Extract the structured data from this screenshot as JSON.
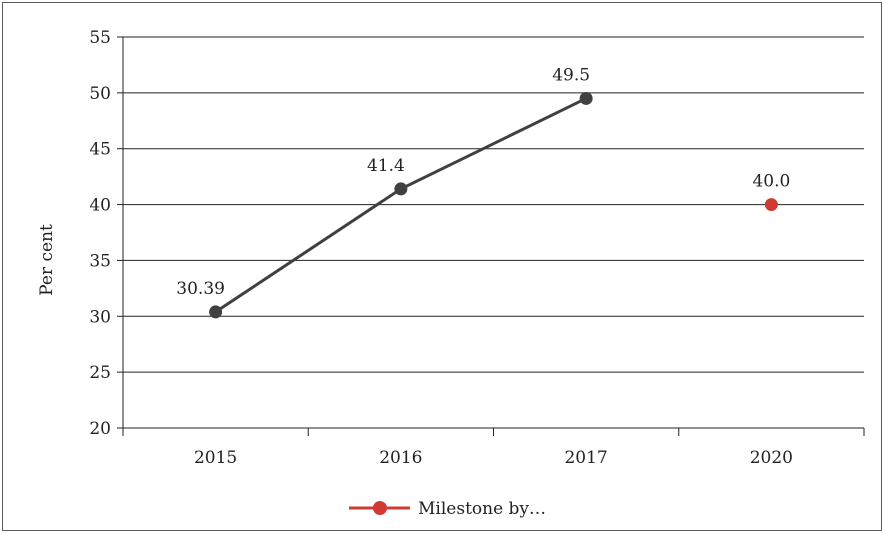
{
  "chart_data": {
    "type": "line",
    "title": "",
    "xlabel": "",
    "ylabel": "Per cent",
    "categories": [
      "2015",
      "2016",
      "2017",
      "2020"
    ],
    "ylim": [
      20,
      55
    ],
    "yticks": [
      20,
      25,
      30,
      35,
      40,
      45,
      50,
      55
    ],
    "grid": true,
    "series": [
      {
        "color": "#404040",
        "points": [
          {
            "x": "2015",
            "y": 30.39,
            "label": "30.39"
          },
          {
            "x": "2016",
            "y": 41.4,
            "label": "41.4"
          },
          {
            "x": "2017",
            "y": 49.5,
            "label": "49.5"
          }
        ]
      },
      {
        "name": "Milestone by…",
        "color": "#d03a30",
        "points": [
          {
            "x": "2020",
            "y": 40.0,
            "label": "40.0"
          }
        ]
      }
    ],
    "legend": {
      "position": "bottom-center",
      "entries": [
        "Milestone by…"
      ]
    }
  }
}
